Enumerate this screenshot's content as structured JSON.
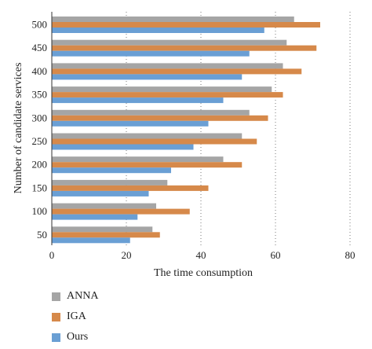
{
  "chart_data": {
    "type": "bar",
    "orientation": "horizontal",
    "xlabel": "The time consumption",
    "ylabel": "Number of candidate services",
    "xlim": [
      0,
      80
    ],
    "xticks": [
      "0",
      "20",
      "40",
      "60",
      "80"
    ],
    "categories": [
      "50",
      "100",
      "150",
      "200",
      "250",
      "300",
      "350",
      "400",
      "450",
      "500"
    ],
    "grid": "vertical-dotted",
    "legend_position": "bottom-left",
    "series": [
      {
        "name": "ANNA",
        "color": "#a5a5a5",
        "values": [
          27,
          28,
          31,
          46,
          51,
          53,
          59,
          62,
          63,
          65
        ]
      },
      {
        "name": "IGA",
        "color": "#d6894a",
        "values": [
          29,
          37,
          42,
          51,
          55,
          58,
          62,
          67,
          71,
          72
        ]
      },
      {
        "name": "Ours",
        "color": "#6a9fd4",
        "values": [
          21,
          23,
          26,
          32,
          38,
          42,
          46,
          51,
          53,
          57
        ]
      }
    ]
  }
}
